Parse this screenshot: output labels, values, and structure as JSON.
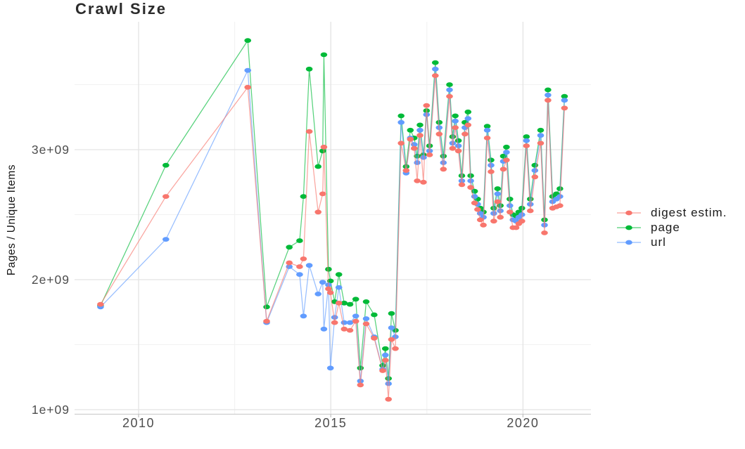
{
  "title": "Crawl Size",
  "axes": {
    "y_title": "Pages / Unique Items",
    "y_ticks": [
      {
        "label": "1e+09",
        "value": 1
      },
      {
        "label": "2e+09",
        "value": 2
      },
      {
        "label": "3e+09",
        "value": 3
      }
    ],
    "x_ticks": [
      {
        "label": "2010",
        "value": 2010
      },
      {
        "label": "2015",
        "value": 2015
      },
      {
        "label": "2020",
        "value": 2020
      }
    ]
  },
  "legend": {
    "position": "right",
    "items": [
      {
        "series": "digest",
        "label": "digest estim.",
        "color": "#F8766D"
      },
      {
        "series": "page",
        "label": "page",
        "color": "#00BA38"
      },
      {
        "series": "url",
        "label": "url",
        "color": "#619CFF"
      }
    ]
  },
  "colors": {
    "background": "#FFFFFF",
    "grid_major": "#E3E3E3",
    "grid_minor": "#F2F2F2",
    "axis_line": "#CFCFCF",
    "tick_mark": "#C4C4C4",
    "tick_text": "#4D4D4D",
    "digest": "#F8766D",
    "page": "#00BA38",
    "url": "#619CFF"
  },
  "chart_data": {
    "type": "line",
    "title": "Crawl Size",
    "xlabel": "",
    "ylabel": "Pages / Unique Items",
    "x_unit": "calendar year (decimal, one point per crawl)",
    "value_unit": "items x 1e9",
    "xlim": [
      2008.35,
      2021.9
    ],
    "ylim_e9": [
      0.97,
      3.99
    ],
    "grid": "major and minor, light gray on white",
    "legend_position": "right",
    "y_major_ticks_e9": [
      1,
      2,
      3
    ],
    "y_minor_gridlines_e9": [
      1.5,
      2.5,
      3.5
    ],
    "x_major_ticks": [
      2010,
      2015,
      2020
    ],
    "x_minor_gridlines": [
      2012.5,
      2017.5
    ],
    "draw_order": [
      "page",
      "url",
      "digest"
    ],
    "x": [
      2009.01,
      2010.71,
      2012.84,
      2013.33,
      2013.92,
      2014.19,
      2014.29,
      2014.44,
      2014.67,
      2014.79,
      2014.82,
      2014.94,
      2014.99,
      2015.1,
      2015.21,
      2015.35,
      2015.5,
      2015.65,
      2015.77,
      2015.92,
      2016.13,
      2016.35,
      2016.42,
      2016.5,
      2016.58,
      2016.68,
      2016.83,
      2016.96,
      2017.07,
      2017.17,
      2017.25,
      2017.32,
      2017.41,
      2017.49,
      2017.57,
      2017.72,
      2017.82,
      2017.93,
      2018.09,
      2018.17,
      2018.24,
      2018.32,
      2018.41,
      2018.49,
      2018.57,
      2018.64,
      2018.74,
      2018.82,
      2018.89,
      2018.97,
      2019.07,
      2019.17,
      2019.24,
      2019.34,
      2019.41,
      2019.49,
      2019.57,
      2019.66,
      2019.74,
      2019.82,
      2019.89,
      2019.97,
      2020.09,
      2020.19,
      2020.31,
      2020.46,
      2020.56,
      2020.65,
      2020.77,
      2020.87,
      2020.96,
      2021.08
    ],
    "series": [
      {
        "name": "page",
        "color": "#00BA38",
        "values_e9": [
          1.8,
          2.88,
          3.84,
          1.79,
          2.25,
          2.3,
          2.64,
          3.62,
          2.87,
          2.99,
          3.73,
          2.08,
          1.99,
          1.83,
          2.04,
          1.82,
          1.81,
          1.85,
          1.32,
          1.83,
          1.73,
          1.34,
          1.47,
          1.24,
          1.74,
          1.61,
          3.26,
          2.87,
          3.15,
          3.09,
          2.95,
          3.19,
          2.96,
          3.3,
          3.03,
          3.67,
          3.21,
          2.95,
          3.5,
          3.1,
          3.26,
          3.07,
          2.8,
          3.21,
          3.29,
          2.8,
          2.68,
          2.62,
          2.55,
          2.52,
          3.18,
          2.92,
          2.55,
          2.7,
          2.57,
          2.95,
          3.02,
          2.62,
          2.5,
          2.49,
          2.52,
          2.55,
          3.1,
          2.62,
          2.88,
          3.15,
          2.46,
          3.46,
          2.64,
          2.66,
          2.7,
          3.41
        ]
      },
      {
        "name": "url",
        "color": "#619CFF",
        "values_e9": [
          1.79,
          2.31,
          3.61,
          1.67,
          2.1,
          2.04,
          1.72,
          2.11,
          1.89,
          1.98,
          1.62,
          1.96,
          1.32,
          1.71,
          1.94,
          1.67,
          1.67,
          1.72,
          1.22,
          1.7,
          1.56,
          1.31,
          1.42,
          1.2,
          1.63,
          1.56,
          3.21,
          2.82,
          3.09,
          3.04,
          2.9,
          3.15,
          2.94,
          3.27,
          2.99,
          3.62,
          3.17,
          2.9,
          3.46,
          3.05,
          3.22,
          3.03,
          2.76,
          3.17,
          3.24,
          2.76,
          2.64,
          2.58,
          2.51,
          2.48,
          3.15,
          2.88,
          2.51,
          2.66,
          2.53,
          2.91,
          2.98,
          2.57,
          2.46,
          2.45,
          2.48,
          2.5,
          3.07,
          2.58,
          2.84,
          3.11,
          2.42,
          3.42,
          2.6,
          2.62,
          2.64,
          3.38
        ]
      },
      {
        "name": "digest",
        "color": "#F8766D",
        "values_e9": [
          1.81,
          2.64,
          3.48,
          1.68,
          2.13,
          2.1,
          2.16,
          3.14,
          2.52,
          2.66,
          3.02,
          1.93,
          1.9,
          1.67,
          1.82,
          1.62,
          1.61,
          1.68,
          1.19,
          1.66,
          1.55,
          1.3,
          1.38,
          1.08,
          1.54,
          1.47,
          3.05,
          2.84,
          3.08,
          3.01,
          2.76,
          3.11,
          2.75,
          3.34,
          2.96,
          3.57,
          3.12,
          2.85,
          3.41,
          3.01,
          3.17,
          2.99,
          2.73,
          3.12,
          3.19,
          2.71,
          2.59,
          2.54,
          2.46,
          2.42,
          3.09,
          2.83,
          2.45,
          2.6,
          2.48,
          2.85,
          2.92,
          2.52,
          2.4,
          2.4,
          2.43,
          2.45,
          3.03,
          2.53,
          2.79,
          3.05,
          2.36,
          3.38,
          2.55,
          2.56,
          2.57,
          3.32
        ]
      }
    ]
  }
}
